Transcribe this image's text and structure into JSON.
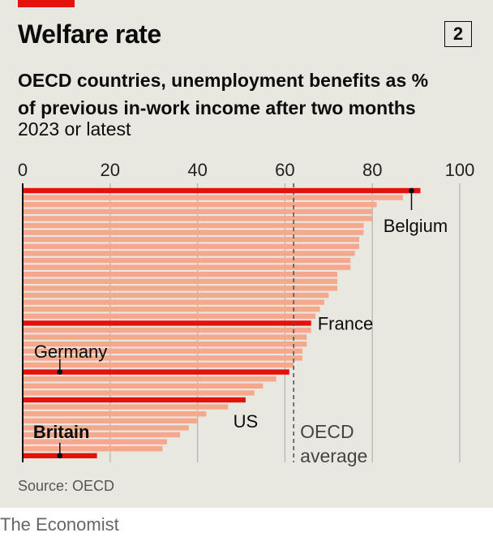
{
  "header": {
    "title": "Welfare rate",
    "chart_number": "2",
    "subtitle_line1": "OECD countries, unemployment benefits as %",
    "subtitle_line2": "of previous in-work income after two months",
    "subtitle_line3": "2023 or latest"
  },
  "footer": {
    "source": "Source: OECD",
    "brand": "The Economist"
  },
  "colors": {
    "highlight": "#e3120b",
    "bar": "#f6a88c",
    "grid": "#b9b8b2",
    "background": "#e9e8e0"
  },
  "chart_data": {
    "type": "bar",
    "orientation": "horizontal",
    "title": "Welfare rate",
    "subtitle": "OECD countries, unemployment benefits as % of previous in-work income after two months, 2023 or latest",
    "xlim": [
      0,
      100
    ],
    "xticks": [
      "0",
      "20",
      "40",
      "60",
      "80",
      "100"
    ],
    "values": [
      91,
      87,
      81,
      80,
      80,
      78,
      78,
      77,
      77,
      76,
      75,
      75,
      72,
      72,
      72,
      70,
      69,
      68,
      67,
      66,
      66,
      65,
      65,
      64,
      64,
      62,
      61,
      58,
      55,
      53,
      51,
      47,
      42,
      40,
      38,
      36,
      33,
      32,
      17
    ],
    "highlighted": [
      {
        "index": 0,
        "label": "Belgium",
        "value": 91
      },
      {
        "index": 19,
        "label": "France",
        "value": 66
      },
      {
        "index": 26,
        "label": "Germany",
        "value": 61
      },
      {
        "index": 30,
        "label": "US",
        "value": 51
      },
      {
        "index": 38,
        "label": "Britain",
        "value": 17
      }
    ],
    "reference_line": {
      "label_line1": "OECD",
      "label_line2": "average",
      "value": 62
    }
  }
}
